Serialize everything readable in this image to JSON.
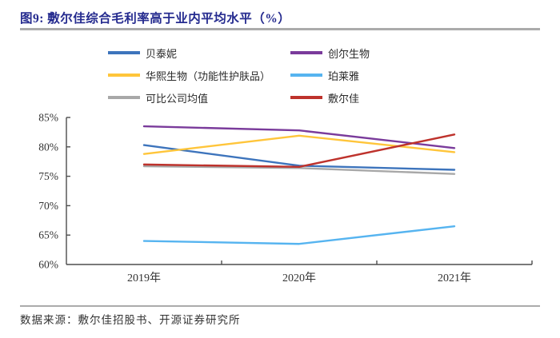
{
  "figure": {
    "title": "图9: 敷尔佳综合毛利率高于业内平均水平（%）",
    "source": "数据来源：敷尔佳招股书、开源证券研究所"
  },
  "colors": {
    "title": "#252B8F",
    "divider": "#ABABAB",
    "axis": "#4d4d4d",
    "tick_text": "#333333"
  },
  "chart_data": {
    "type": "line",
    "categories": [
      "2019年",
      "2020年",
      "2021年"
    ],
    "series": [
      {
        "name": "贝泰妮",
        "color": "#3D74BC",
        "values": [
          80.3,
          76.8,
          76.1
        ]
      },
      {
        "name": "创尔生物",
        "color": "#7A3B9B",
        "values": [
          83.5,
          82.8,
          79.8
        ]
      },
      {
        "name": "华熙生物（功能性护肤品）",
        "color": "#FFC53A",
        "values": [
          78.8,
          81.9,
          79.1
        ]
      },
      {
        "name": "珀莱雅",
        "color": "#56B4F0",
        "values": [
          64.0,
          63.5,
          66.5
        ]
      },
      {
        "name": "可比公司均值",
        "color": "#A8A8A8",
        "values": [
          76.7,
          76.4,
          75.4
        ]
      },
      {
        "name": "敷尔佳",
        "color": "#BE322C",
        "values": [
          77.0,
          76.6,
          82.1
        ]
      }
    ],
    "ylim": [
      60,
      85
    ],
    "ytick_values": [
      85,
      80,
      75,
      70,
      65,
      60
    ],
    "ytick_labels": [
      "85%",
      "80%",
      "75%",
      "70%",
      "65%",
      "60%"
    ],
    "legend_position": "top",
    "grid": false
  }
}
